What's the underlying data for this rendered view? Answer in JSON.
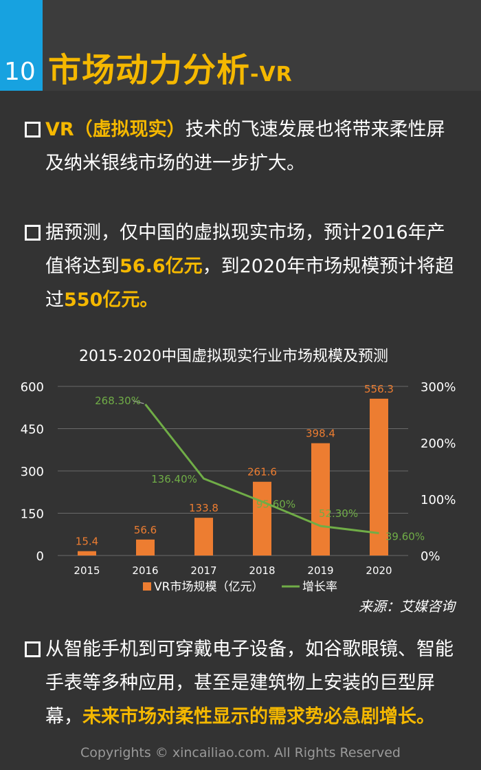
{
  "header": {
    "number": "10",
    "title": "市场动力分析",
    "title_suffix": "-VR",
    "colors": {
      "stripe": "#17a2e0",
      "title": "#f5b800"
    }
  },
  "bullet1": {
    "highlight": "VR（虚拟现实）",
    "text": "技术的飞速发展也将带来柔性屏及纳米银线市场的进一步扩大。"
  },
  "bullet2": {
    "part1": "据预测，仅中国的虚拟现实市场，预计2016年产值将达到",
    "highlight1": "56.6亿元",
    "part2": "，到2020年市场规模预计将超过",
    "highlight2": "550亿元。"
  },
  "bullet3": {
    "text": "从智能手机到可穿戴电子设备，如谷歌眼镜、智能手表等多种应用，甚至是建筑物上安装的巨型屏幕，",
    "highlight": "未来市场对柔性显示的需求势必急剧增长。"
  },
  "source": "来源：艾媒咨询",
  "copyright": "Copyrights © xincailiao.com. All Rights Reserved",
  "chart_data": {
    "type": "bar",
    "title": "2015-2020中国虚拟现实行业市场规模及预测",
    "categories": [
      "2015",
      "2016",
      "2017",
      "2018",
      "2019",
      "2020"
    ],
    "series": [
      {
        "name": "VR市场规模（亿元）",
        "type": "bar",
        "axis": "left",
        "color": "#ed7d31",
        "values": [
          15.4,
          56.6,
          133.8,
          261.6,
          398.4,
          556.3
        ],
        "labels": [
          "15.4",
          "56.6",
          "133.8",
          "261.6",
          "398.4",
          "556.3"
        ]
      },
      {
        "name": "增长率",
        "type": "line",
        "axis": "right",
        "color": "#70ad47",
        "values": [
          null,
          268.3,
          136.4,
          95.6,
          52.3,
          39.6
        ],
        "labels": [
          "",
          "268.30%",
          "136.40%",
          "95.60%",
          "52.30%",
          "39.60%"
        ]
      }
    ],
    "ylim_left": [
      0,
      600
    ],
    "yticks_left": [
      "0",
      "150",
      "300",
      "450",
      "600"
    ],
    "ylim_right": [
      0,
      300
    ],
    "yticks_right": [
      "0%",
      "100%",
      "200%",
      "300%"
    ],
    "grid": true,
    "legend_position": "bottom"
  }
}
